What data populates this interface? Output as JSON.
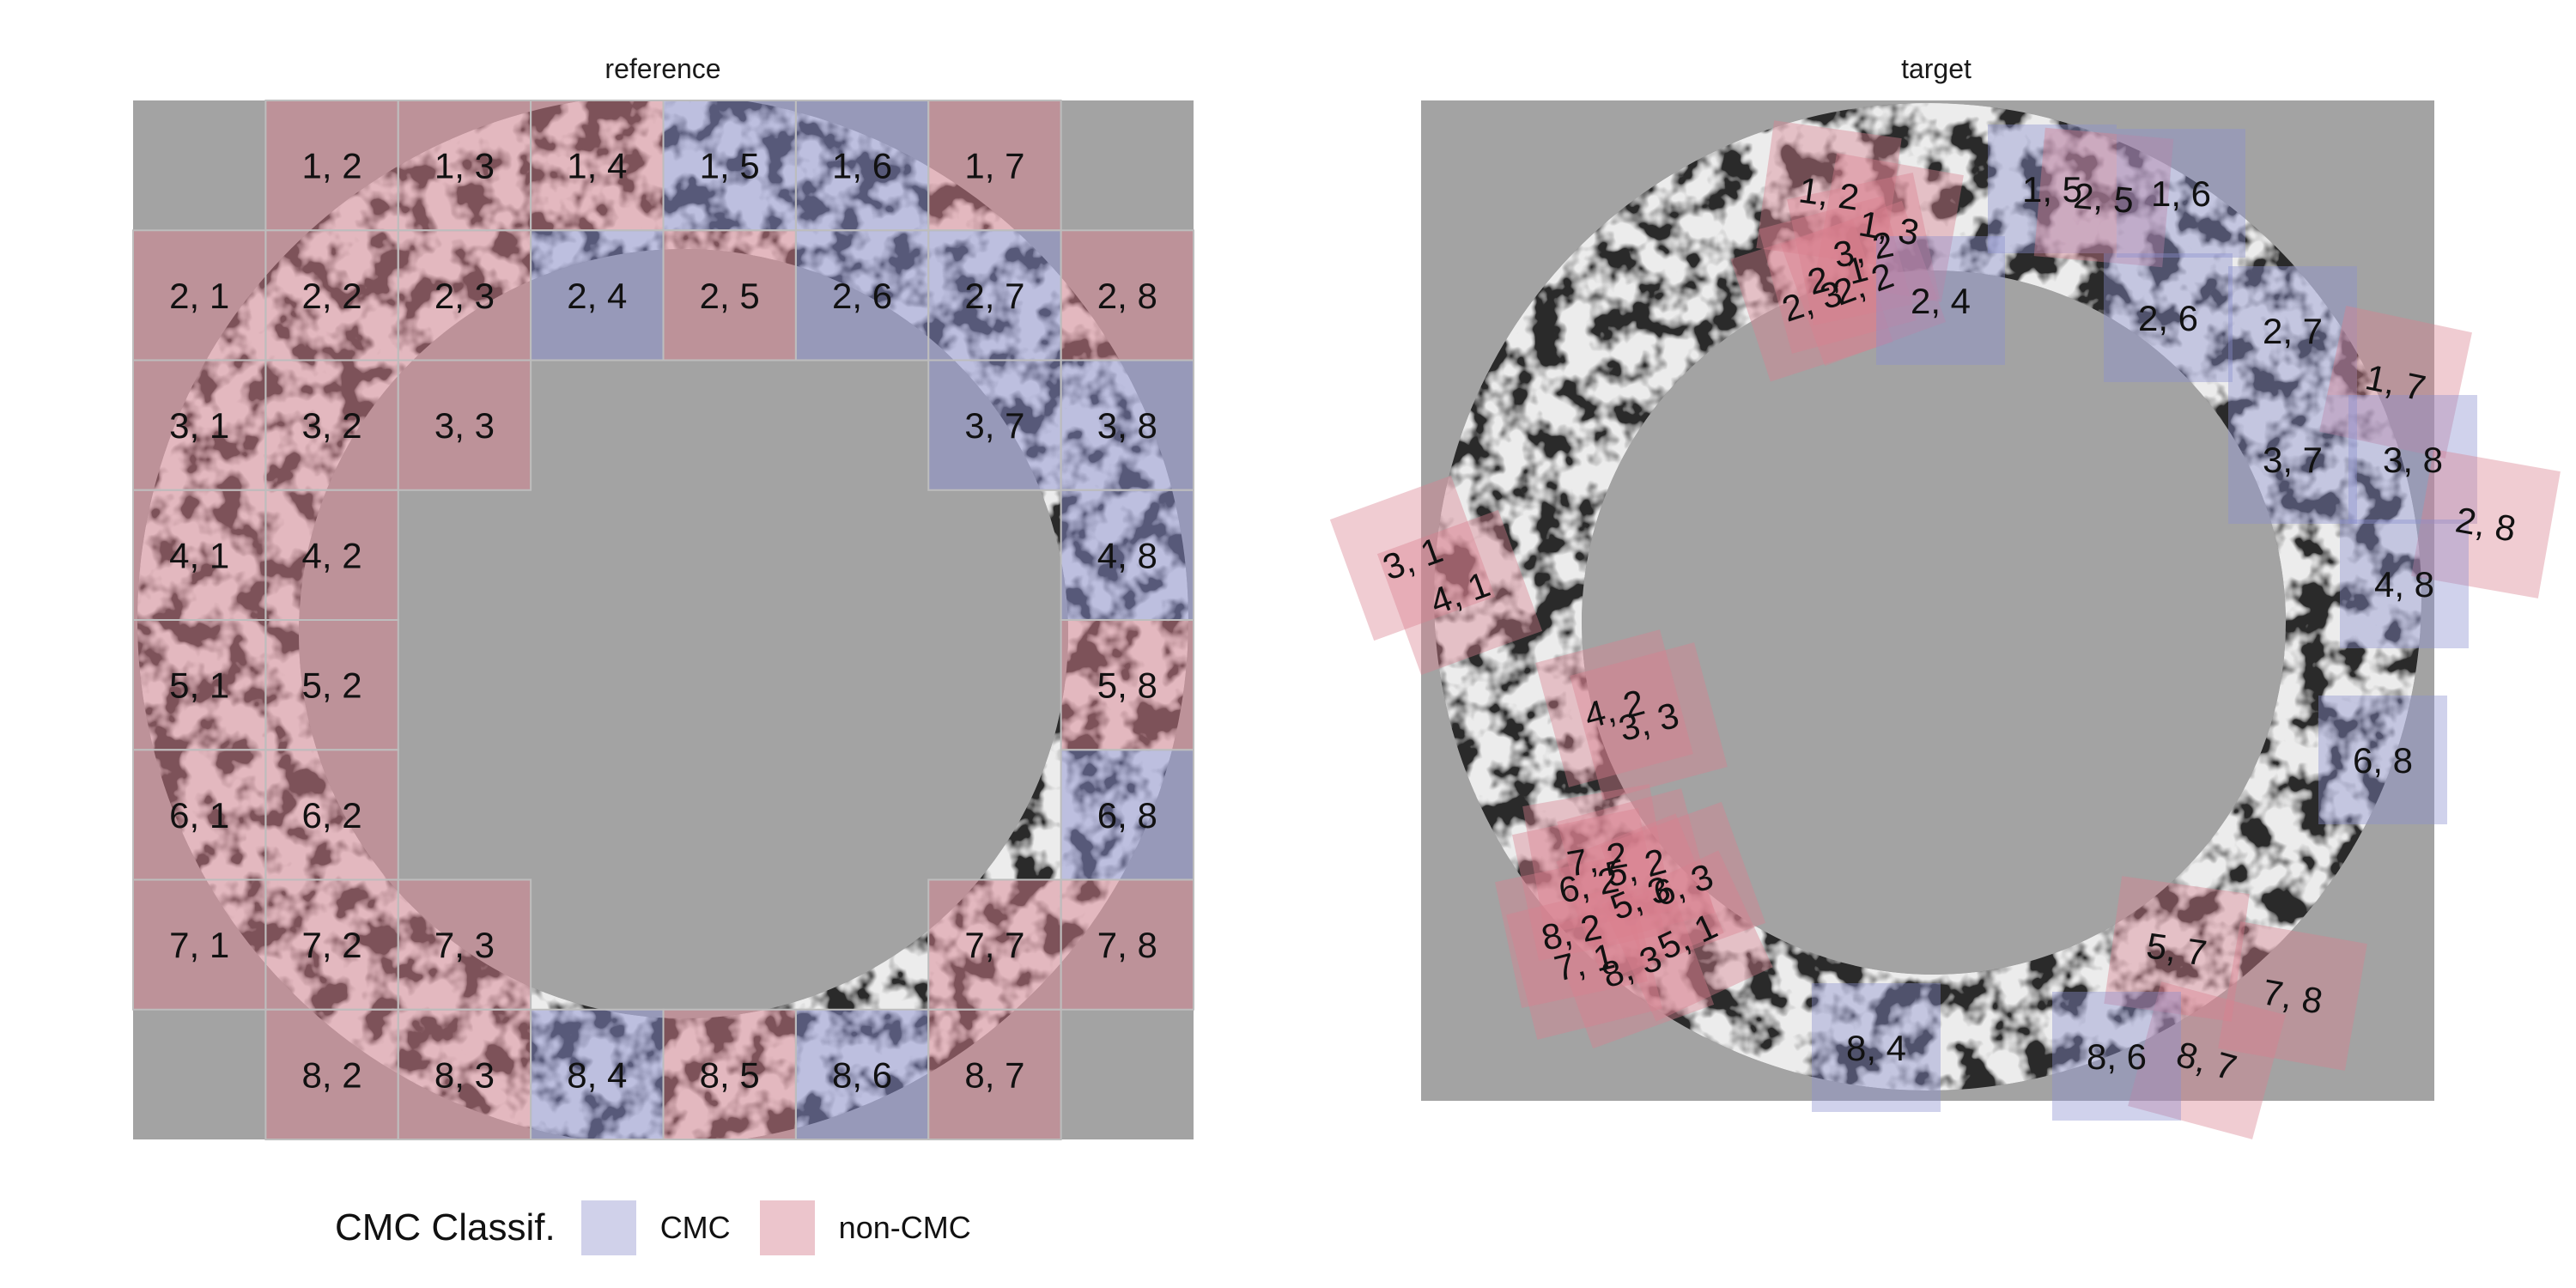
{
  "panels": [
    {
      "title": "reference"
    },
    {
      "title": "target"
    }
  ],
  "legend": {
    "title": "CMC Classif.",
    "items": [
      {
        "label": "CMC",
        "color": "#8a8fd0"
      },
      {
        "label": "non-CMC",
        "color": "#d97f8f"
      }
    ]
  },
  "colors": {
    "background_gray": "#a3a3a3",
    "cmc_fill": "#8a8fd0",
    "noncmc_fill": "#d97f8f",
    "surface_light": "#ececec",
    "surface_dark": "#2a2a2a"
  },
  "reference_cells": [
    {
      "label": "1, 2",
      "class": "non-CMC"
    },
    {
      "label": "1, 3",
      "class": "non-CMC"
    },
    {
      "label": "1, 4",
      "class": "non-CMC"
    },
    {
      "label": "1, 5",
      "class": "CMC"
    },
    {
      "label": "1, 6",
      "class": "CMC"
    },
    {
      "label": "1, 7",
      "class": "non-CMC"
    },
    {
      "label": "2, 1",
      "class": "non-CMC"
    },
    {
      "label": "2, 2",
      "class": "non-CMC"
    },
    {
      "label": "2, 3",
      "class": "non-CMC"
    },
    {
      "label": "2, 4",
      "class": "CMC"
    },
    {
      "label": "2, 5",
      "class": "non-CMC"
    },
    {
      "label": "2, 6",
      "class": "CMC"
    },
    {
      "label": "2, 7",
      "class": "CMC"
    },
    {
      "label": "2, 8",
      "class": "non-CMC"
    },
    {
      "label": "3, 1",
      "class": "non-CMC"
    },
    {
      "label": "3, 2",
      "class": "non-CMC"
    },
    {
      "label": "3, 3",
      "class": "non-CMC"
    },
    {
      "label": "3, 7",
      "class": "CMC"
    },
    {
      "label": "3, 8",
      "class": "CMC"
    },
    {
      "label": "4, 1",
      "class": "non-CMC"
    },
    {
      "label": "4, 2",
      "class": "non-CMC"
    },
    {
      "label": "4, 8",
      "class": "CMC"
    },
    {
      "label": "5, 1",
      "class": "non-CMC"
    },
    {
      "label": "5, 2",
      "class": "non-CMC"
    },
    {
      "label": "5, 8",
      "class": "non-CMC"
    },
    {
      "label": "6, 1",
      "class": "non-CMC"
    },
    {
      "label": "6, 2",
      "class": "non-CMC"
    },
    {
      "label": "6, 8",
      "class": "CMC"
    },
    {
      "label": "7, 1",
      "class": "non-CMC"
    },
    {
      "label": "7, 2",
      "class": "non-CMC"
    },
    {
      "label": "7, 3",
      "class": "non-CMC"
    },
    {
      "label": "7, 7",
      "class": "non-CMC"
    },
    {
      "label": "7, 8",
      "class": "non-CMC"
    },
    {
      "label": "8, 2",
      "class": "non-CMC"
    },
    {
      "label": "8, 3",
      "class": "non-CMC"
    },
    {
      "label": "8, 4",
      "class": "CMC"
    },
    {
      "label": "8, 5",
      "class": "non-CMC"
    },
    {
      "label": "8, 6",
      "class": "CMC"
    },
    {
      "label": "8, 7",
      "class": "non-CMC"
    }
  ],
  "target_cells": [
    {
      "label": "1, 2",
      "class": "non-CMC"
    },
    {
      "label": "1, 3",
      "class": "non-CMC"
    },
    {
      "label": "3, 2",
      "class": "non-CMC"
    },
    {
      "label": "2, 1",
      "class": "non-CMC"
    },
    {
      "label": "2, 2",
      "class": "non-CMC"
    },
    {
      "label": "2, 3",
      "class": "non-CMC"
    },
    {
      "label": "2, 4",
      "class": "CMC"
    },
    {
      "label": "1, 5",
      "class": "CMC"
    },
    {
      "label": "2, 5",
      "class": "non-CMC"
    },
    {
      "label": "1, 6",
      "class": "CMC"
    },
    {
      "label": "2, 6",
      "class": "CMC"
    },
    {
      "label": "2, 7",
      "class": "CMC"
    },
    {
      "label": "1, 7",
      "class": "non-CMC"
    },
    {
      "label": "3, 7",
      "class": "CMC"
    },
    {
      "label": "3, 8",
      "class": "CMC"
    },
    {
      "label": "2, 8",
      "class": "non-CMC"
    },
    {
      "label": "4, 8",
      "class": "CMC"
    },
    {
      "label": "3, 1",
      "class": "non-CMC"
    },
    {
      "label": "4, 1",
      "class": "non-CMC"
    },
    {
      "label": "4, 2",
      "class": "non-CMC"
    },
    {
      "label": "3, 3",
      "class": "non-CMC"
    },
    {
      "label": "6, 8",
      "class": "CMC"
    },
    {
      "label": "7, 2",
      "class": "non-CMC"
    },
    {
      "label": "6, 2",
      "class": "non-CMC"
    },
    {
      "label": "5, 2",
      "class": "non-CMC"
    },
    {
      "label": "6, 3",
      "class": "non-CMC"
    },
    {
      "label": "5, 3",
      "class": "non-CMC"
    },
    {
      "label": "8, 2",
      "class": "non-CMC"
    },
    {
      "label": "5, 1",
      "class": "non-CMC"
    },
    {
      "label": "7, 1",
      "class": "non-CMC"
    },
    {
      "label": "8, 3",
      "class": "non-CMC"
    },
    {
      "label": "5, 7",
      "class": "non-CMC"
    },
    {
      "label": "7, 8",
      "class": "non-CMC"
    },
    {
      "label": "8, 7",
      "class": "non-CMC"
    },
    {
      "label": "8, 6",
      "class": "CMC"
    },
    {
      "label": "8, 4",
      "class": "CMC"
    }
  ]
}
